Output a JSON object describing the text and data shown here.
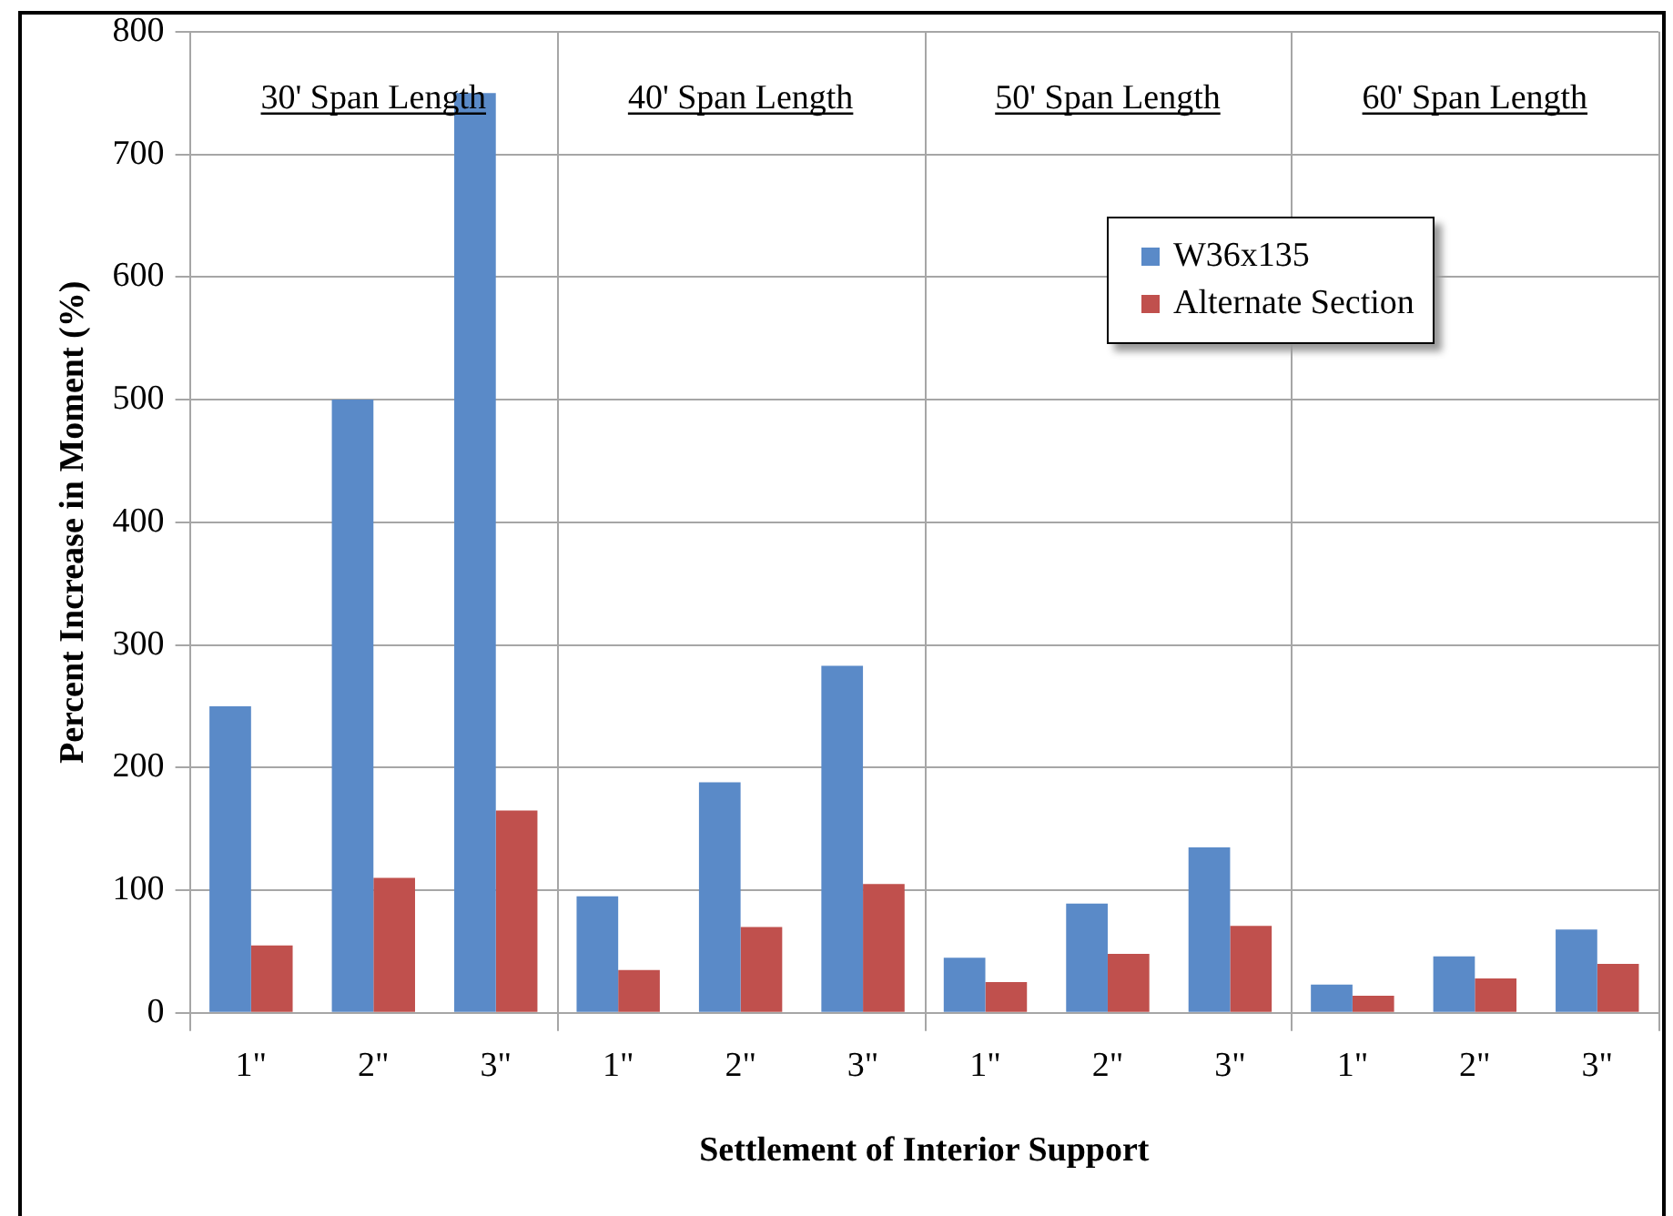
{
  "chart_data": {
    "type": "bar",
    "xlabel": "Settlement of Interior Support",
    "ylabel": "Percent Increase in Moment (%)",
    "categories": [
      "1\"",
      "2\"",
      "3\"",
      "1\"",
      "2\"",
      "3\"",
      "1\"",
      "2\"",
      "3\"",
      "1\"",
      "2\"",
      "3\""
    ],
    "series": [
      {
        "name": "W36x135",
        "color": "#5a8ac8",
        "values": [
          250,
          500,
          750,
          95,
          188,
          283,
          45,
          89,
          135,
          23,
          46,
          68
        ]
      },
      {
        "name": "Alternate Section",
        "color": "#c0504d",
        "values": [
          55,
          110,
          165,
          35,
          70,
          105,
          25,
          48,
          71,
          14,
          28,
          40
        ]
      }
    ],
    "ylim": [
      0,
      800
    ],
    "yticks": [
      0,
      100,
      200,
      300,
      400,
      500,
      600,
      700,
      800
    ],
    "grid": "y",
    "legend": "top right",
    "annotations": [
      "30' Span Length",
      "40' Span Length",
      "50' Span Length",
      "60' Span Length"
    ]
  }
}
